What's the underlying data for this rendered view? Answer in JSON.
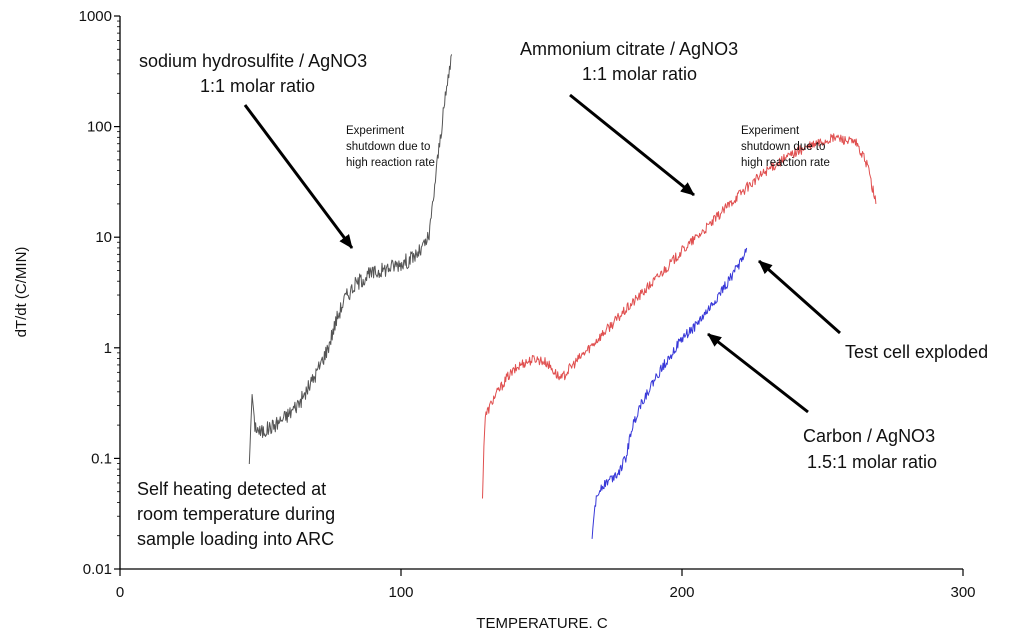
{
  "chart_data": {
    "type": "line",
    "xlabel": "TEMPERATURE. C",
    "ylabel": "dT/dt (C/MIN)",
    "xlim": [
      0,
      300
    ],
    "ylim": [
      0.01,
      1000
    ],
    "yscale": "log",
    "xticks": [
      0,
      100,
      200,
      300
    ],
    "xtick_labels": [
      "0",
      "100",
      "200",
      "300"
    ],
    "yticks": [
      0.01,
      0.1,
      1,
      10,
      100,
      1000
    ],
    "ytick_labels": [
      "0.01",
      "0.1",
      "1",
      "10",
      "100",
      "1000"
    ],
    "grid": false,
    "legend": "none",
    "series": [
      {
        "color": "#555555",
        "points": [
          [
            46,
            0.09
          ],
          [
            47,
            0.38
          ],
          [
            48,
            0.2
          ],
          [
            50,
            0.17
          ],
          [
            55,
            0.2
          ],
          [
            60,
            0.25
          ],
          [
            65,
            0.35
          ],
          [
            70,
            0.6
          ],
          [
            74,
            1.0
          ],
          [
            77,
            1.8
          ],
          [
            80,
            2.8
          ],
          [
            84,
            3.8
          ],
          [
            88,
            4.5
          ],
          [
            93,
            5.0
          ],
          [
            98,
            5.6
          ],
          [
            103,
            6.2
          ],
          [
            107,
            7.5
          ],
          [
            110,
            10
          ],
          [
            113,
            50
          ],
          [
            116,
            200
          ],
          [
            118,
            450
          ]
        ]
      },
      {
        "color": "#e05050",
        "points": [
          [
            129,
            0.043
          ],
          [
            129.5,
            0.13
          ],
          [
            130,
            0.24
          ],
          [
            133,
            0.35
          ],
          [
            138,
            0.55
          ],
          [
            143,
            0.72
          ],
          [
            148,
            0.8
          ],
          [
            152,
            0.73
          ],
          [
            156,
            0.55
          ],
          [
            157,
            0.52
          ],
          [
            160,
            0.65
          ],
          [
            170,
            1.2
          ],
          [
            180,
            2.2
          ],
          [
            190,
            4.0
          ],
          [
            200,
            7.5
          ],
          [
            210,
            13
          ],
          [
            220,
            24
          ],
          [
            230,
            40
          ],
          [
            240,
            58
          ],
          [
            248,
            70
          ],
          [
            255,
            80
          ],
          [
            262,
            70
          ],
          [
            266,
            45
          ],
          [
            269,
            20
          ]
        ]
      },
      {
        "color": "#3838d8",
        "points": [
          [
            168,
            0.019
          ],
          [
            169,
            0.038
          ],
          [
            171,
            0.055
          ],
          [
            176,
            0.07
          ],
          [
            178,
            0.08
          ],
          [
            180,
            0.1
          ],
          [
            182,
            0.18
          ],
          [
            185,
            0.3
          ],
          [
            190,
            0.5
          ],
          [
            195,
            0.8
          ],
          [
            200,
            1.2
          ],
          [
            205,
            1.6
          ],
          [
            210,
            2.3
          ],
          [
            215,
            3.5
          ],
          [
            220,
            5.5
          ],
          [
            223,
            8
          ]
        ]
      }
    ],
    "annotations": [
      {
        "id": "hydrosulfite_line1",
        "text": "sodium hydrosulfite / AgNO3"
      },
      {
        "id": "hydrosulfite_line2",
        "text": "1:1 molar ratio"
      },
      {
        "id": "citrate_line1",
        "text": "Ammonium citrate / AgNO3"
      },
      {
        "id": "citrate_line2",
        "text": "1:1 molar ratio"
      },
      {
        "id": "shutdown1_line1",
        "text": "Experiment"
      },
      {
        "id": "shutdown1_line2",
        "text": "shutdown due to"
      },
      {
        "id": "shutdown1_line3",
        "text": "high reaction rate"
      },
      {
        "id": "shutdown2_line1",
        "text": "Experiment"
      },
      {
        "id": "shutdown2_line2",
        "text": "shutdown due to"
      },
      {
        "id": "shutdown2_line3",
        "text": "high reaction rate"
      },
      {
        "id": "exploded",
        "text": "Test cell exploded"
      },
      {
        "id": "carbon_line1",
        "text": "Carbon / AgNO3"
      },
      {
        "id": "carbon_line2",
        "text": "1.5:1 molar ratio"
      },
      {
        "id": "self_heating_line1",
        "text": "Self heating detected at"
      },
      {
        "id": "self_heating_line2",
        "text": "room temperature during"
      },
      {
        "id": "self_heating_line3",
        "text": "sample loading into ARC"
      }
    ]
  }
}
